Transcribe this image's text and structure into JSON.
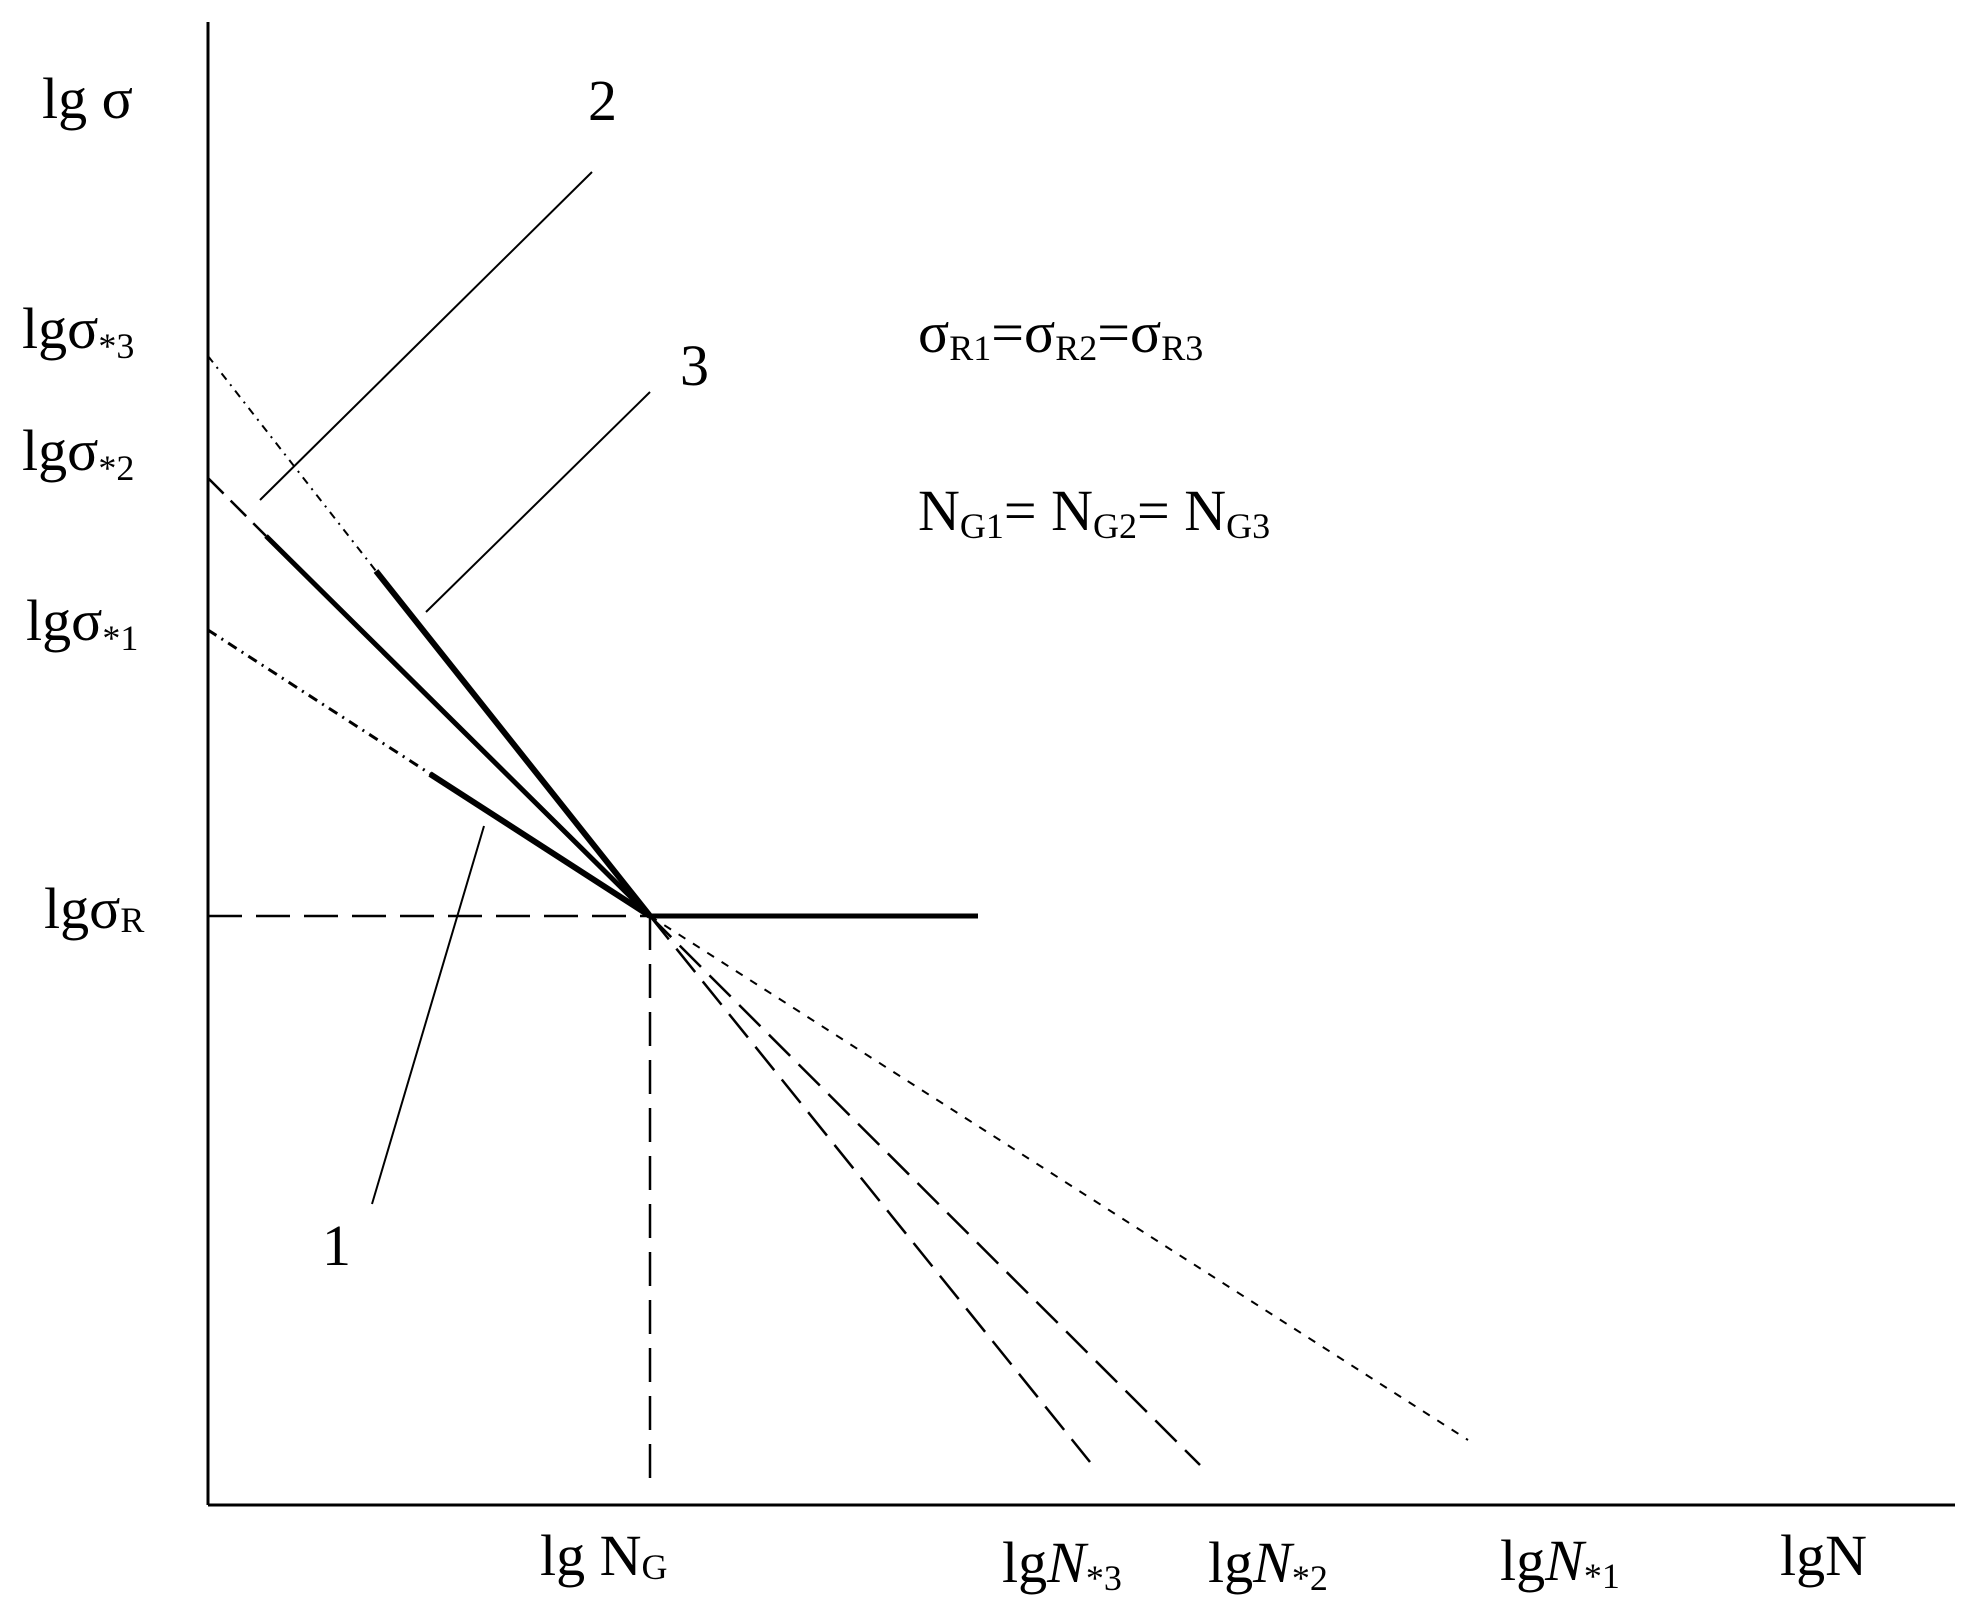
{
  "axes": {
    "y_label_main": "lg σ",
    "x_label_main": "lgN"
  },
  "y_ticks": {
    "sigma_star3": {
      "base": "lgσ",
      "sub": "*3"
    },
    "sigma_star2": {
      "base": "lgσ",
      "sub": "*2"
    },
    "sigma_star1": {
      "base": "lgσ",
      "sub": "*1"
    },
    "sigma_R": {
      "base": "lgσ",
      "sub": "R"
    }
  },
  "x_ticks": {
    "N_G": {
      "base": "lg N",
      "sub": "G"
    },
    "N_star3": {
      "base": "lg",
      "ital": "N",
      "sub": "*3"
    },
    "N_star2": {
      "base": "lg",
      "ital": "N",
      "sub": "*2"
    },
    "N_star1": {
      "base": "lg",
      "ital": "N",
      "sub": "*1"
    }
  },
  "curve_labels": {
    "one": "1",
    "two": "2",
    "three": "3"
  },
  "equations": {
    "sigma": {
      "s1": "σ",
      "s1sub": "R1",
      "eq1": "=",
      "s2": "σ",
      "s2sub": "R2",
      "eq2": "=",
      "s3": "σ",
      "s3sub": "R3"
    },
    "n": {
      "n1": "N",
      "n1sub": "G1",
      "eq1": "=",
      "n2": " N",
      "n2sub": "G2",
      "eq2": "=",
      "n3": " N",
      "n3sub": "G3"
    }
  }
}
